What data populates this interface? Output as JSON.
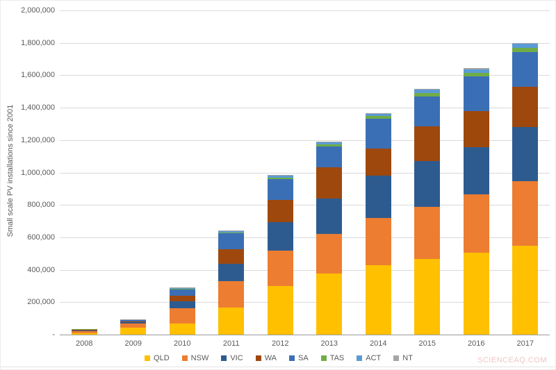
{
  "page": {
    "watermark": "SCIENCEAQ.COM"
  },
  "chart_data": {
    "type": "bar",
    "stacked": true,
    "title": "",
    "xlabel": "",
    "ylabel": "Small scale PV installations since 2001",
    "ylim": [
      0,
      2000000
    ],
    "ytick_step": 200000,
    "ytick_labels": [
      "-",
      "200,000",
      "400,000",
      "600,000",
      "800,000",
      "1,000,000",
      "1,200,000",
      "1,400,000",
      "1,600,000",
      "1,800,000",
      "2,000,000"
    ],
    "grid": true,
    "legend_position": "bottom",
    "categories": [
      "2008",
      "2009",
      "2010",
      "2011",
      "2012",
      "2013",
      "2014",
      "2015",
      "2016",
      "2017"
    ],
    "series": [
      {
        "name": "QLD",
        "color": "#FFC000",
        "values": [
          10000,
          45000,
          68000,
          165000,
          300000,
          375000,
          428000,
          465000,
          505000,
          550000
        ]
      },
      {
        "name": "NSW",
        "color": "#ED7D31",
        "values": [
          13000,
          22000,
          94000,
          165000,
          220000,
          248000,
          293000,
          325000,
          360000,
          395000
        ]
      },
      {
        "name": "VIC",
        "color": "#2E5B8F",
        "values": [
          5000,
          10000,
          43000,
          105000,
          175000,
          218000,
          258000,
          280000,
          292000,
          335000
        ]
      },
      {
        "name": "WA",
        "color": "#9E480E",
        "values": [
          3000,
          6000,
          34000,
          90000,
          135000,
          190000,
          170000,
          215000,
          222000,
          248000
        ]
      },
      {
        "name": "SA",
        "color": "#3B6FB5",
        "values": [
          2000,
          8000,
          40000,
          100000,
          128000,
          130000,
          182000,
          185000,
          214000,
          215000
        ]
      },
      {
        "name": "TAS",
        "color": "#70AD47",
        "values": [
          500,
          1500,
          4000,
          6000,
          12000,
          14000,
          16000,
          20000,
          22000,
          25000
        ]
      },
      {
        "name": "ACT",
        "color": "#5B9BD5",
        "values": [
          300,
          1000,
          6000,
          8000,
          10000,
          12000,
          14000,
          20000,
          22000,
          25000
        ]
      },
      {
        "name": "NT",
        "color": "#A5A5A5",
        "values": [
          200,
          500,
          1000,
          2000,
          3000,
          3000,
          4000,
          5000,
          6000,
          7000
        ]
      }
    ]
  }
}
